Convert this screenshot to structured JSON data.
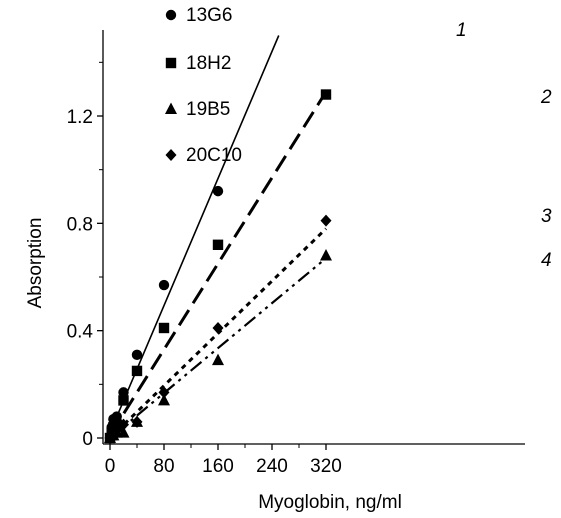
{
  "chart_data": {
    "type": "scatter",
    "title": "",
    "xlabel": "Myoglobin, ng/ml",
    "ylabel": "Absorption",
    "xlim": [
      0,
      320
    ],
    "ylim": [
      0,
      1.5
    ],
    "xticks": [
      "0",
      "80",
      "160",
      "240",
      "320"
    ],
    "xtick_values": [
      0,
      80,
      160,
      240,
      320
    ],
    "yticks": [
      "0",
      "0.4",
      "0.8",
      "1.2"
    ],
    "ytick_values": [
      0,
      0.4,
      0.8,
      1.2
    ],
    "grid": false,
    "legend_position": "top-left",
    "series": [
      {
        "name": "13G6",
        "marker": "circle",
        "line_label": "1",
        "line_style": "solid",
        "x": [
          0,
          2.5,
          5,
          10,
          20,
          40,
          80,
          160
        ],
        "y": [
          0.0,
          0.04,
          0.07,
          0.08,
          0.17,
          0.31,
          0.57,
          0.92
        ],
        "fit": [
          [
            0,
            0.02
          ],
          [
            250,
            1.5
          ]
        ]
      },
      {
        "name": "18H2",
        "marker": "square",
        "line_label": "2",
        "line_style": "long-dash",
        "x": [
          0,
          2.5,
          5,
          10,
          20,
          40,
          80,
          160,
          320
        ],
        "y": [
          0.0,
          0.02,
          0.04,
          0.05,
          0.14,
          0.25,
          0.41,
          0.72,
          1.28
        ],
        "fit": [
          [
            0,
            0.01
          ],
          [
            320,
            1.29
          ]
        ]
      },
      {
        "name": "19B5",
        "marker": "triangle",
        "line_label": "4",
        "line_style": "dash-dot-dot",
        "x": [
          0,
          2.5,
          5,
          10,
          20,
          40,
          80,
          160,
          320
        ],
        "y": [
          0.0,
          0.01,
          0.01,
          0.02,
          0.02,
          0.06,
          0.14,
          0.29,
          0.68
        ],
        "fit": [
          [
            0,
            0.0
          ],
          [
            320,
            0.67
          ]
        ]
      },
      {
        "name": "20C10",
        "marker": "diamond",
        "line_label": "3",
        "line_style": "dotted",
        "x": [
          0,
          2.5,
          5,
          10,
          20,
          40,
          80,
          160,
          320
        ],
        "y": [
          0.0,
          0.01,
          0.01,
          0.03,
          0.05,
          0.06,
          0.17,
          0.41,
          0.81
        ],
        "fit": [
          [
            0,
            0.0
          ],
          [
            320,
            0.78
          ]
        ]
      }
    ],
    "colors": {
      "ink": "#000000",
      "background": "#ffffff"
    }
  }
}
